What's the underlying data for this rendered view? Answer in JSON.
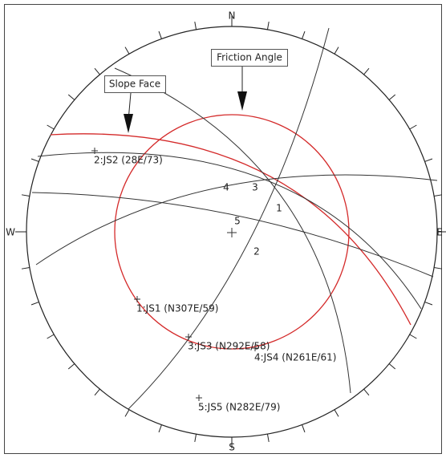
{
  "compass": {
    "north": "N",
    "south": "S",
    "west": "W",
    "east": "E"
  },
  "callouts": {
    "friction_angle": "Friction Angle",
    "slope_face": "Slope Face"
  },
  "poles": [
    "2:JS2 (28E/73)",
    "1:JS1 (N307E/59)",
    "3:JS3 (N292E/58)",
    "4:JS4 (N261E/61)",
    "5:JS5 (N282E/79)"
  ],
  "intersections": [
    "4",
    "3",
    "1",
    "5",
    "2"
  ]
}
